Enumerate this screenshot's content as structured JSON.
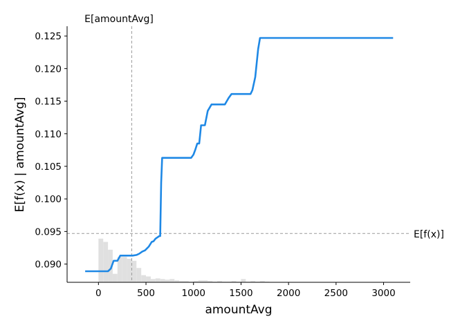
{
  "chart_data": {
    "type": "line",
    "xlabel": "amountAvg",
    "ylabel": "E[f(x) | amountAvg]",
    "xlim": [
      -330,
      3280
    ],
    "ylim": [
      0.0872,
      0.1265
    ],
    "x_ticks": [
      0,
      500,
      1000,
      1500,
      2000,
      2500,
      3000
    ],
    "x_tick_labels": [
      "0",
      "500",
      "1000",
      "1500",
      "2000",
      "2500",
      "3000"
    ],
    "y_ticks": [
      0.09,
      0.095,
      0.1,
      0.105,
      0.11,
      0.115,
      0.12,
      0.125
    ],
    "y_tick_labels": [
      "0.090",
      "0.095",
      "0.100",
      "0.105",
      "0.110",
      "0.115",
      "0.120",
      "0.125"
    ],
    "grid": false,
    "colors": {
      "line": "#1e88e5",
      "histogram": "#e0e0e0",
      "reference": "#999999",
      "axis": "#000000"
    },
    "series": [
      {
        "x": [
          -140,
          0,
          100,
          130,
          160,
          200,
          230,
          280,
          320,
          360,
          400,
          430,
          460,
          490,
          530,
          560,
          580,
          600,
          620,
          640,
          650,
          660,
          670,
          975,
          1000,
          1020,
          1040,
          1060,
          1080,
          1120,
          1150,
          1190,
          1330,
          1350,
          1370,
          1400,
          1600,
          1620,
          1650,
          1680,
          1700,
          1720,
          1750,
          2000,
          2500,
          3100
        ],
        "y": [
          0.0889,
          0.0889,
          0.0889,
          0.0893,
          0.0905,
          0.0905,
          0.0913,
          0.0913,
          0.0913,
          0.0913,
          0.0914,
          0.0916,
          0.0919,
          0.0921,
          0.0927,
          0.0934,
          0.0935,
          0.0939,
          0.0941,
          0.0943,
          0.0943,
          0.1025,
          0.1063,
          0.1063,
          0.1068,
          0.1076,
          0.1085,
          0.1085,
          0.1113,
          0.1113,
          0.1135,
          0.1145,
          0.1145,
          0.115,
          0.1155,
          0.1161,
          0.1161,
          0.1167,
          0.1187,
          0.123,
          0.1247,
          0.1247,
          0.1247,
          0.1247,
          0.1247,
          0.1247
        ]
      }
    ],
    "expected_value": {
      "label": "E[f(x)]",
      "y": 0.0947
    },
    "expected_feature": {
      "label": "E[amountAvg]",
      "x": 350
    },
    "histogram": {
      "bin_edges": [
        -50,
        0,
        50,
        100,
        150,
        200,
        250,
        300,
        350,
        400,
        450,
        500,
        550,
        600,
        650,
        700,
        750,
        800,
        850,
        900,
        950,
        1000,
        1050,
        1100,
        1150,
        1200,
        1250,
        1300,
        1350,
        1400,
        1450,
        1500,
        1550,
        1600,
        1650,
        1700,
        1750,
        1800
      ],
      "heights": [
        0.0,
        0.0939,
        0.0934,
        0.0922,
        0.0885,
        0.0911,
        0.0911,
        0.0908,
        0.0905,
        0.0894,
        0.0883,
        0.0881,
        0.0877,
        0.0878,
        0.0877,
        0.0876,
        0.0877,
        0.0875,
        0.0874,
        0.0874,
        0.0873,
        0.0874,
        0.0875,
        0.0875,
        0.0874,
        0.0873,
        0.0874,
        0.0873,
        0.0873,
        0.0874,
        0.0873,
        0.0877,
        0.0873,
        0.0874,
        0.0873,
        0.0874,
        0.0873,
        0.0875
      ]
    }
  }
}
